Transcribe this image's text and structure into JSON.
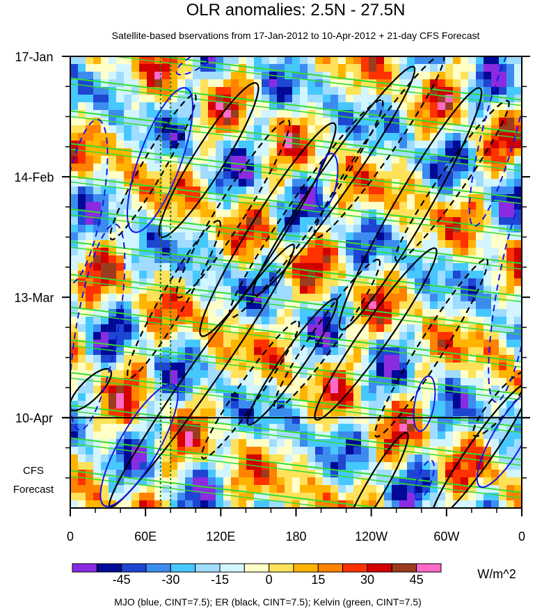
{
  "chart_data": {
    "type": "heatmap",
    "title": "OLR anomalies: 2.5N - 27.5N",
    "subtitle": "Satellite-based bservations from 17-Jan-2012 to 10-Apr-2012 + 21-day CFS Forecast",
    "x_tick_labels": [
      "0",
      "60E",
      "120E",
      "180",
      "120W",
      "60W",
      "0"
    ],
    "x_ticks_deg_east": [
      0,
      60,
      120,
      180,
      240,
      300,
      360
    ],
    "y_tick_labels": [
      "17-Jan",
      "14-Feb",
      "13-Mar",
      "10-Apr"
    ],
    "y_ticks_day_offset": [
      0,
      28,
      56,
      84
    ],
    "y_range_days": [
      0,
      105
    ],
    "forecast_start_label": "10-Apr",
    "forecast_label_line1": "CFS",
    "forecast_label_line2": "Forecast",
    "reference_longitudes_deg_east": [
      72,
      80
    ],
    "colorbar": {
      "units": "W/m^2",
      "tick_labels": [
        "-45",
        "-30",
        "-15",
        "0",
        "15",
        "30",
        "45"
      ],
      "colors": [
        "#8a2be2",
        "#000a96",
        "#1e46d2",
        "#3c8cf0",
        "#46c8ff",
        "#a0dcff",
        "#d2f5ff",
        "#ffffc8",
        "#ffe15a",
        "#ffb400",
        "#ff8200",
        "#ff3200",
        "#d20000",
        "#9b3c1e",
        "#ff69c8"
      ]
    },
    "contours": {
      "mjo_color": "#1414e6",
      "er_color": "#000000",
      "kelvin_color": "#32dc32"
    },
    "footnote": "MJO (blue, CINT=7.5); ER (black, CINT=7.5); Kelvin (green, CINT=7.5)"
  }
}
